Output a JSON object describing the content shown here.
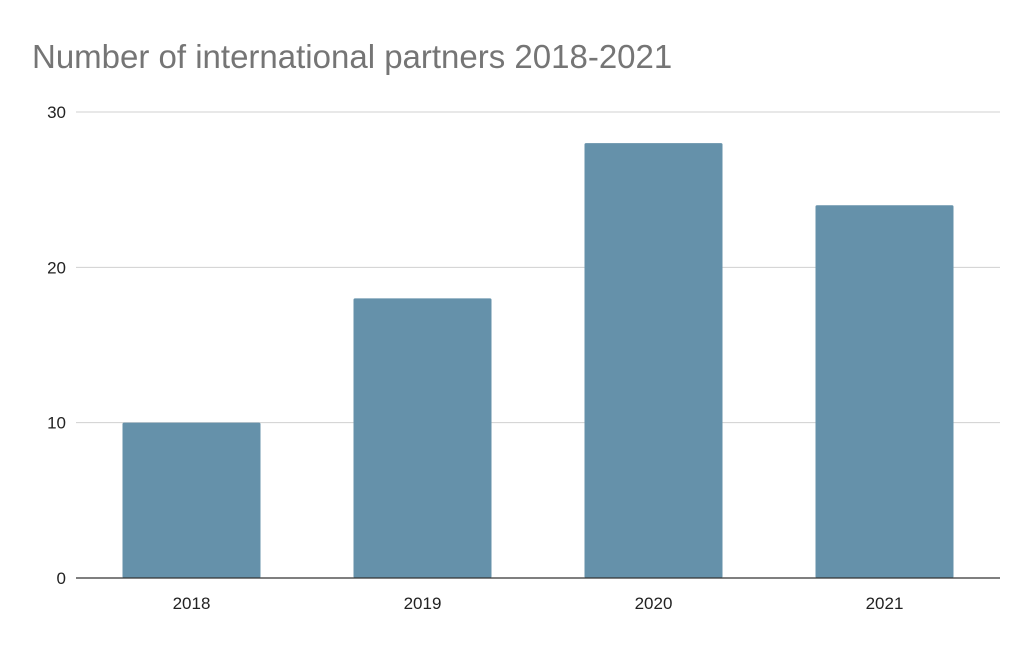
{
  "chart_data": {
    "type": "bar",
    "title": "Number of international partners 2018-2021",
    "categories": [
      "2018",
      "2019",
      "2020",
      "2021"
    ],
    "values": [
      10,
      18,
      28,
      24
    ],
    "xlabel": "",
    "ylabel": "",
    "ylim": [
      0,
      30
    ],
    "yticks": [
      "0",
      "10",
      "20",
      "30"
    ],
    "grid": true,
    "legend": "none",
    "colors": {
      "bar": "#6591AA",
      "grid": "#D0D0D0",
      "axis": "#333333",
      "title": "#757575",
      "tick_label": "#222222"
    }
  }
}
